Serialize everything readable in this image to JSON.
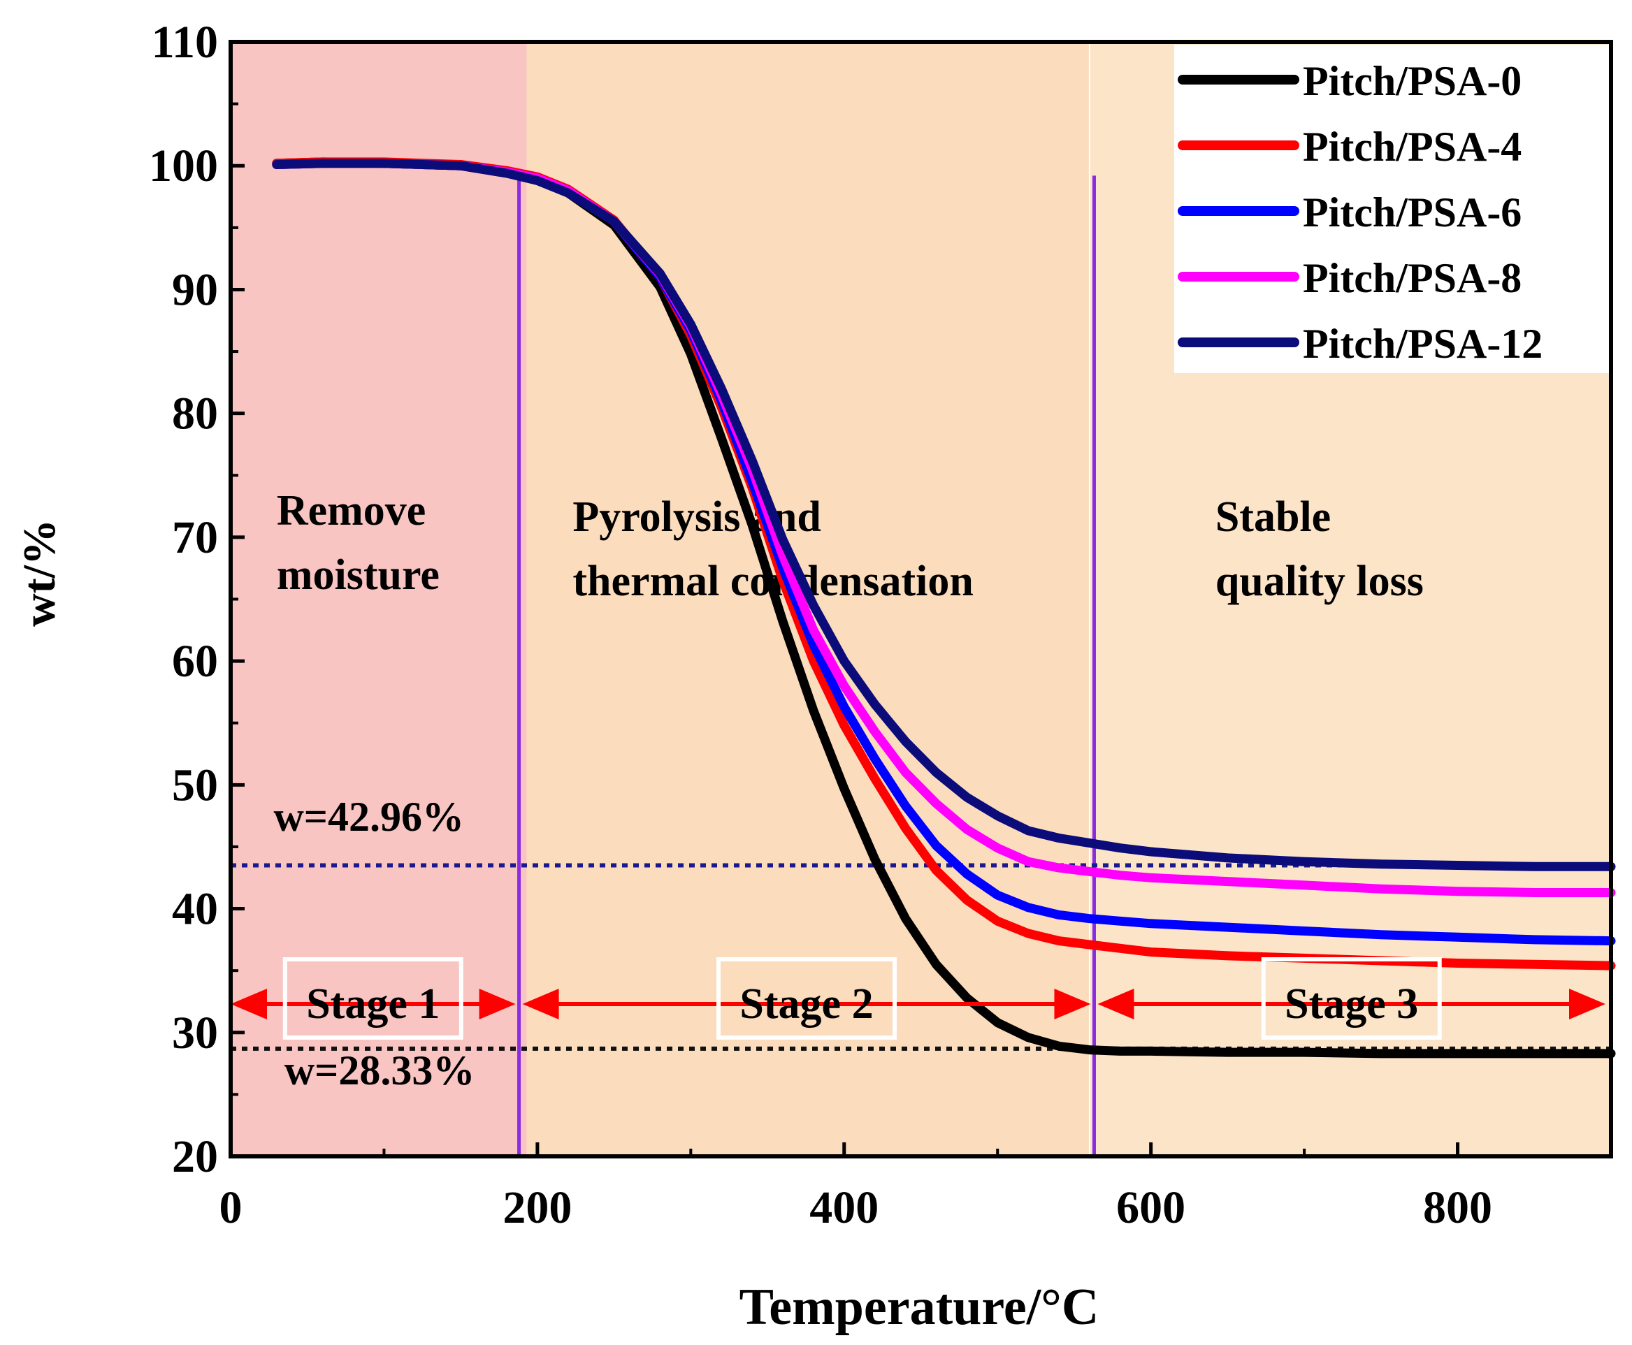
{
  "chart_data": {
    "type": "line",
    "title": "",
    "xlabel": "Temperature/°C",
    "ylabel": "wt/%",
    "xlim": [
      0,
      900
    ],
    "ylim": [
      20,
      110
    ],
    "xticks": [
      0,
      200,
      400,
      600,
      800
    ],
    "yticks": [
      20,
      30,
      40,
      50,
      60,
      70,
      80,
      90,
      100,
      110
    ],
    "grid": false,
    "legend_position": "top-right",
    "regions": [
      {
        "x_start": 0,
        "x_end": 193,
        "color": "#f9c5c2"
      },
      {
        "x_start": 193,
        "x_end": 560,
        "color": "#fbdcbd"
      },
      {
        "x_start": 560,
        "x_end": 900,
        "color": "#fce4c8"
      }
    ],
    "region_labels": [
      {
        "lines": [
          "Remove",
          "moisture"
        ],
        "x": 30,
        "y": 71
      },
      {
        "lines": [
          "Pyrolysis and",
          "thermal condensation"
        ],
        "x": 223,
        "y": 70.5
      },
      {
        "lines": [
          "Stable",
          "quality loss"
        ],
        "x": 642,
        "y": 70.5
      }
    ],
    "stage_boundaries": [
      188,
      563
    ],
    "stage_arrow_y": 32.3,
    "stages": [
      {
        "label": "Stage 1",
        "x_start": 0,
        "x_end": 188
      },
      {
        "label": "Stage 2",
        "x_start": 188,
        "x_end": 563
      },
      {
        "label": "Stage 3",
        "x_start": 563,
        "x_end": 900
      }
    ],
    "reference_lines": [
      {
        "label": "w=42.96%",
        "y": 43.5,
        "color": "#1a1a8c",
        "label_x": 28,
        "label_y": 46.3
      },
      {
        "label": "w=28.33%",
        "y": 28.7,
        "color": "#111111",
        "label_x": 35,
        "label_y": 25.8
      }
    ],
    "x": [
      30,
      60,
      100,
      150,
      180,
      200,
      220,
      250,
      280,
      300,
      320,
      340,
      360,
      380,
      400,
      420,
      440,
      460,
      480,
      500,
      520,
      540,
      560,
      580,
      600,
      650,
      700,
      750,
      800,
      850,
      900
    ],
    "series": [
      {
        "name": "Pitch/PSA-0",
        "color": "#000000",
        "values": [
          100.2,
          100.3,
          100.2,
          100,
          99.4,
          98.9,
          97.8,
          95.2,
          90.2,
          84.8,
          78,
          71,
          63.2,
          56,
          49.7,
          44,
          39.2,
          35.5,
          32.8,
          30.8,
          29.6,
          28.9,
          28.6,
          28.5,
          28.5,
          28.4,
          28.4,
          28.3,
          28.3,
          28.3,
          28.3
        ]
      },
      {
        "name": "Pitch/PSA-4",
        "color": "#ff0000",
        "values": [
          100.2,
          100.3,
          100.3,
          100.1,
          99.6,
          99.1,
          98.1,
          95.6,
          91,
          86.3,
          80.5,
          74,
          66.5,
          60,
          54.8,
          50.5,
          46.5,
          43.1,
          40.7,
          39,
          38,
          37.4,
          37.1,
          36.8,
          36.5,
          36.2,
          36,
          35.8,
          35.6,
          35.5,
          35.4
        ]
      },
      {
        "name": "Pitch/PSA-6",
        "color": "#0000ff",
        "values": [
          100.1,
          100.2,
          100.2,
          100,
          99.5,
          99,
          98,
          95.5,
          91,
          86.7,
          81,
          74.5,
          67.5,
          61.3,
          56.3,
          52.1,
          48.3,
          45.1,
          42.8,
          41.1,
          40.1,
          39.5,
          39.2,
          39,
          38.8,
          38.5,
          38.2,
          37.9,
          37.7,
          37.5,
          37.4
        ]
      },
      {
        "name": "Pitch/PSA-8",
        "color": "#ff00ff",
        "values": [
          100.1,
          100.2,
          100.2,
          100,
          99.5,
          99,
          98,
          95.5,
          91.2,
          87,
          81.5,
          75.5,
          68.5,
          62.5,
          58,
          54.3,
          51,
          48.5,
          46.4,
          44.9,
          43.8,
          43.3,
          43,
          42.7,
          42.5,
          42.2,
          41.9,
          41.6,
          41.4,
          41.3,
          41.3
        ]
      },
      {
        "name": "Pitch/PSA-12",
        "color": "#0b0b7a",
        "values": [
          100.1,
          100.2,
          100.2,
          100,
          99.4,
          98.8,
          97.8,
          95.5,
          91.3,
          87.2,
          82,
          76.2,
          69.8,
          64.5,
          60,
          56.5,
          53.5,
          51,
          49,
          47.5,
          46.3,
          45.7,
          45.3,
          44.9,
          44.6,
          44.1,
          43.8,
          43.6,
          43.5,
          43.4,
          43.4
        ]
      }
    ]
  }
}
